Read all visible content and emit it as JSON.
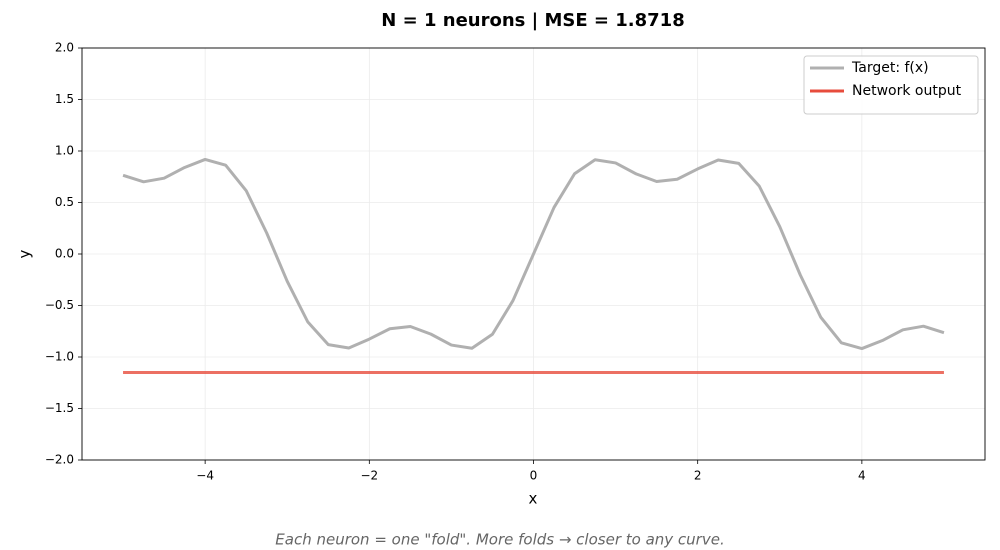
{
  "chart_data": {
    "type": "line",
    "title": "N = 1 neurons  |  MSE = 1.8718",
    "xlabel": "x",
    "ylabel": "y",
    "caption": "Each neuron = one \"fold\". More folds → closer to any curve.",
    "x": [
      -5,
      -4.75,
      -4.5,
      -4.25,
      -4,
      -3.75,
      -3.5,
      -3.25,
      -3,
      -2.75,
      -2.5,
      -2.25,
      -2,
      -1.75,
      -1.5,
      -1.25,
      -1,
      -0.75,
      -0.5,
      -0.25,
      0,
      0.25,
      0.5,
      0.75,
      1,
      1.25,
      1.5,
      1.75,
      2,
      2.25,
      2.5,
      2.75,
      3,
      3.25,
      3.5,
      3.75,
      4,
      4.25,
      4.5,
      4.75,
      5
    ],
    "series": [
      {
        "name": "Target: f(x)",
        "color": "#b0b0b0",
        "values": [
          0.764,
          0.701,
          0.736,
          0.84,
          0.918,
          0.862,
          0.615,
          0.204,
          -0.265,
          -0.659,
          -0.88,
          -0.913,
          -0.826,
          -0.726,
          -0.704,
          -0.778,
          -0.884,
          -0.915,
          -0.779,
          -0.452,
          0,
          0.452,
          0.779,
          0.915,
          0.884,
          0.778,
          0.704,
          0.726,
          0.826,
          0.913,
          0.88,
          0.659,
          0.265,
          -0.204,
          -0.615,
          -0.862,
          -0.918,
          -0.84,
          -0.736,
          -0.701,
          -0.764
        ]
      },
      {
        "name": "Network output",
        "color": "#e74c3c",
        "values": [
          -1.15,
          -1.15,
          -1.15,
          -1.15,
          -1.15,
          -1.15,
          -1.15,
          -1.15,
          -1.15,
          -1.15,
          -1.15,
          -1.15,
          -1.15,
          -1.15,
          -1.15,
          -1.15,
          -1.15,
          -1.15,
          -1.15,
          -1.15,
          -1.15,
          -1.15,
          -1.15,
          -1.15,
          -1.15,
          -1.15,
          -1.15,
          -1.15,
          -1.15,
          -1.15,
          -1.15,
          -1.15,
          -1.15,
          -1.15,
          -1.15,
          -1.15,
          -1.15,
          -1.15,
          -1.15,
          -1.15,
          -1.15
        ]
      }
    ],
    "xlim": [
      -5.5,
      5.5
    ],
    "ylim": [
      -2,
      2
    ],
    "xticks": [
      {
        "value": -4,
        "label": "−4"
      },
      {
        "value": -2,
        "label": "−2"
      },
      0,
      2,
      4
    ],
    "yticks": [
      {
        "value": -2,
        "label": "−2.0"
      },
      {
        "value": -1.5,
        "label": "−1.5"
      },
      {
        "value": -1,
        "label": "−1.0"
      },
      {
        "value": -0.5,
        "label": "−0.5"
      },
      {
        "value": 0,
        "label": "0.0"
      },
      0.5,
      {
        "value": 1,
        "label": "1.0"
      },
      1.5,
      {
        "value": 2,
        "label": "2.0"
      }
    ],
    "grid": true,
    "legend": "upper right"
  }
}
